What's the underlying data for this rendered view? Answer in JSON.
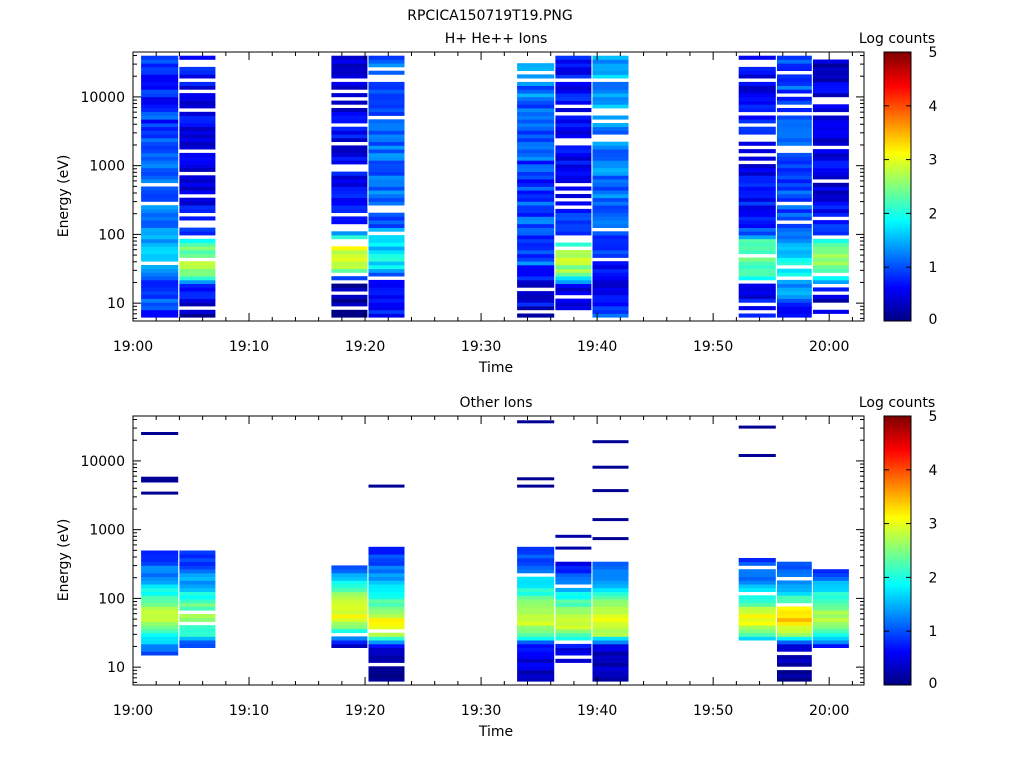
{
  "file_title": "RPCICA150719T19.PNG",
  "chart_data": [
    {
      "type": "heatmap",
      "title": "H+ He++ Ions",
      "xlabel": "Time",
      "ylabel": "Energy (eV)",
      "x_ticks": [
        "19:00",
        "19:10",
        "19:20",
        "19:30",
        "19:40",
        "19:50",
        "20:00"
      ],
      "x_range_minutes": [
        0,
        63
      ],
      "y_scale": "log",
      "y_range": [
        5.5,
        45000
      ],
      "y_tick_labels": [
        "10",
        "100",
        "1000",
        "10000"
      ],
      "colorbar": {
        "label": "Log counts",
        "range": [
          0,
          5
        ],
        "ticks": [
          "0",
          "1",
          "2",
          "3",
          "4",
          "5"
        ]
      },
      "scans": [
        {
          "start": "19:00.7",
          "end": "19:03.9",
          "emin": 6,
          "emax": 40000,
          "profile": [
            [
              6,
              0.8
            ],
            [
              15,
              1.0
            ],
            [
              30,
              1.2
            ],
            [
              60,
              1.5
            ],
            [
              120,
              1.3
            ],
            [
              400,
              1.0
            ],
            [
              3000,
              0.9
            ],
            [
              40000,
              0.8
            ]
          ],
          "noise": 0.7,
          "gap": 0.05,
          "seed": 11
        },
        {
          "start": "19:04.0",
          "end": "19:07.1",
          "emin": 6,
          "emax": 40000,
          "profile": [
            [
              6,
              0.2
            ],
            [
              18,
              0.7
            ],
            [
              25,
              2.3
            ],
            [
              45,
              2.8
            ],
            [
              70,
              2.2
            ],
            [
              100,
              1.0
            ],
            [
              400,
              0.5
            ],
            [
              40000,
              0.6
            ]
          ],
          "noise": 0.6,
          "gap": 0.2,
          "seed": 12
        },
        {
          "start": "19:17.1",
          "end": "19:20.2",
          "emin": 6,
          "emax": 40000,
          "profile": [
            [
              6,
              0.1
            ],
            [
              20,
              0.3
            ],
            [
              28,
              2.3
            ],
            [
              45,
              3.0
            ],
            [
              75,
              2.8
            ],
            [
              110,
              1.0
            ],
            [
              400,
              0.6
            ],
            [
              40000,
              0.5
            ]
          ],
          "noise": 0.6,
          "gap": 0.2,
          "seed": 13
        },
        {
          "start": "19:20.3",
          "end": "19:23.4",
          "emin": 6,
          "emax": 40000,
          "profile": [
            [
              6,
              0.8
            ],
            [
              20,
              0.5
            ],
            [
              30,
              1.6
            ],
            [
              50,
              1.9
            ],
            [
              80,
              1.5
            ],
            [
              150,
              1.1
            ],
            [
              1000,
              1.1
            ],
            [
              40000,
              1.1
            ]
          ],
          "noise": 0.6,
          "gap": 0.1,
          "seed": 14
        },
        {
          "start": "19:33.1",
          "end": "19:36.3",
          "emin": 6,
          "emax": 40000,
          "profile": [
            [
              6,
              0.5
            ],
            [
              20,
              0.6
            ],
            [
              40,
              1.1
            ],
            [
              100,
              1.0
            ],
            [
              400,
              0.9
            ],
            [
              5000,
              1.1
            ],
            [
              40000,
              1.3
            ]
          ],
          "noise": 0.7,
          "gap": 0.08,
          "seed": 15
        },
        {
          "start": "19:36.4",
          "end": "19:39.5",
          "emin": 6,
          "emax": 40000,
          "profile": [
            [
              6,
              0.2
            ],
            [
              18,
              0.6
            ],
            [
              25,
              2.4
            ],
            [
              45,
              2.9
            ],
            [
              70,
              2.3
            ],
            [
              100,
              1.0
            ],
            [
              400,
              0.6
            ],
            [
              40000,
              0.7
            ]
          ],
          "noise": 0.6,
          "gap": 0.22,
          "seed": 16
        },
        {
          "start": "19:39.6",
          "end": "19:42.7",
          "emin": 6,
          "emax": 40000,
          "profile": [
            [
              6,
              1.0
            ],
            [
              20,
              0.6
            ],
            [
              50,
              0.8
            ],
            [
              200,
              1.1
            ],
            [
              2000,
              1.3
            ],
            [
              40000,
              1.5
            ]
          ],
          "noise": 0.6,
          "gap": 0.1,
          "seed": 17
        },
        {
          "start": "19:52.2",
          "end": "19:55.4",
          "emin": 6,
          "emax": 40000,
          "profile": [
            [
              6,
              0.6
            ],
            [
              18,
              0.5
            ],
            [
              25,
              2.1
            ],
            [
              45,
              2.6
            ],
            [
              80,
              2.1
            ],
            [
              110,
              0.9
            ],
            [
              400,
              0.6
            ],
            [
              40000,
              0.6
            ]
          ],
          "noise": 0.6,
          "gap": 0.22,
          "seed": 18
        },
        {
          "start": "19:55.5",
          "end": "19:58.5",
          "emin": 6,
          "emax": 40000,
          "profile": [
            [
              6,
              0.4
            ],
            [
              20,
              1.6
            ],
            [
              35,
              1.9
            ],
            [
              60,
              1.6
            ],
            [
              120,
              1.0
            ],
            [
              1000,
              1.0
            ],
            [
              40000,
              1.0
            ]
          ],
          "noise": 0.6,
          "gap": 0.12,
          "seed": 19
        },
        {
          "start": "19:58.6",
          "end": "20:01.7",
          "emin": 6,
          "emax": 40000,
          "profile": [
            [
              6,
              0.2
            ],
            [
              18,
              0.6
            ],
            [
              25,
              2.3
            ],
            [
              45,
              2.8
            ],
            [
              70,
              2.2
            ],
            [
              100,
              1.0
            ],
            [
              400,
              0.5
            ],
            [
              40000,
              0.4
            ]
          ],
          "noise": 0.6,
          "gap": 0.2,
          "seed": 20
        }
      ]
    },
    {
      "type": "heatmap",
      "title": "Other Ions",
      "xlabel": "Time",
      "ylabel": "Energy (eV)",
      "x_ticks": [
        "19:00",
        "19:10",
        "19:20",
        "19:30",
        "19:40",
        "19:50",
        "20:00"
      ],
      "x_range_minutes": [
        0,
        63
      ],
      "y_scale": "log",
      "y_range": [
        5.5,
        45000
      ],
      "y_tick_labels": [
        "10",
        "100",
        "1000",
        "10000"
      ],
      "colorbar": {
        "label": "Log counts",
        "range": [
          0,
          5
        ],
        "ticks": [
          "0",
          "1",
          "2",
          "3",
          "4",
          "5"
        ]
      },
      "scans": [
        {
          "start": "19:00.7",
          "end": "19:03.9",
          "emin": 15,
          "emax": 500,
          "profile": [
            [
              15,
              0.6
            ],
            [
              25,
              1.8
            ],
            [
              40,
              2.6
            ],
            [
              60,
              2.8
            ],
            [
              100,
              2.2
            ],
            [
              200,
              1.4
            ],
            [
              500,
              0.8
            ]
          ],
          "noise": 0.4,
          "gap": 0.02,
          "seed": 21
        },
        {
          "start": "19:04.0",
          "end": "19:07.1",
          "emin": 20,
          "emax": 600,
          "profile": [
            [
              20,
              0.8
            ],
            [
              30,
              2.0
            ],
            [
              50,
              2.7
            ],
            [
              80,
              2.3
            ],
            [
              150,
              1.6
            ],
            [
              300,
              1.0
            ],
            [
              600,
              0.6
            ]
          ],
          "noise": 0.4,
          "gap": 0.12,
          "seed": 22
        },
        {
          "start": "19:17.1",
          "end": "19:20.2",
          "emin": 20,
          "emax": 300,
          "profile": [
            [
              20,
              0.3
            ],
            [
              28,
              1.5
            ],
            [
              45,
              2.9
            ],
            [
              70,
              3.1
            ],
            [
              120,
              2.5
            ],
            [
              200,
              1.5
            ],
            [
              300,
              0.9
            ]
          ],
          "noise": 0.4,
          "gap": 0.05,
          "seed": 23
        },
        {
          "start": "19:20.3",
          "end": "19:23.4",
          "emin": 6,
          "emax": 550,
          "profile": [
            [
              6,
              0.1
            ],
            [
              20,
              0.4
            ],
            [
              30,
              2.8
            ],
            [
              45,
              3.2
            ],
            [
              70,
              2.6
            ],
            [
              150,
              1.6
            ],
            [
              300,
              1.1
            ],
            [
              550,
              0.8
            ]
          ],
          "noise": 0.4,
          "gap": 0.06,
          "seed": 24
        },
        {
          "start": "19:33.1",
          "end": "19:36.3",
          "emin": 6,
          "emax": 550,
          "profile": [
            [
              6,
              0.3
            ],
            [
              20,
              0.6
            ],
            [
              30,
              2.4
            ],
            [
              50,
              3.0
            ],
            [
              80,
              2.6
            ],
            [
              150,
              1.8
            ],
            [
              300,
              1.2
            ],
            [
              550,
              0.7
            ]
          ],
          "noise": 0.4,
          "gap": 0.05,
          "seed": 25
        },
        {
          "start": "19:36.4",
          "end": "19:39.5",
          "emin": 10,
          "emax": 350,
          "profile": [
            [
              10,
              0.2
            ],
            [
              20,
              0.5
            ],
            [
              30,
              2.4
            ],
            [
              45,
              3.0
            ],
            [
              70,
              2.6
            ],
            [
              150,
              1.4
            ],
            [
              350,
              0.6
            ]
          ],
          "noise": 0.4,
          "gap": 0.15,
          "seed": 26
        },
        {
          "start": "19:39.6",
          "end": "19:42.7",
          "emin": 6,
          "emax": 350,
          "profile": [
            [
              6,
              0.2
            ],
            [
              20,
              0.4
            ],
            [
              30,
              2.6
            ],
            [
              50,
              3.0
            ],
            [
              80,
              2.6
            ],
            [
              150,
              1.6
            ],
            [
              350,
              0.8
            ]
          ],
          "noise": 0.4,
          "gap": 0.05,
          "seed": 27
        },
        {
          "start": "19:52.2",
          "end": "19:55.4",
          "emin": 25,
          "emax": 380,
          "profile": [
            [
              25,
              1.6
            ],
            [
              35,
              2.6
            ],
            [
              50,
              3.2
            ],
            [
              80,
              2.5
            ],
            [
              150,
              1.5
            ],
            [
              380,
              0.8
            ]
          ],
          "noise": 0.4,
          "gap": 0.08,
          "seed": 28
        },
        {
          "start": "19:55.5",
          "end": "19:58.5",
          "emin": 6,
          "emax": 350,
          "profile": [
            [
              6,
              0.1
            ],
            [
              20,
              0.3
            ],
            [
              30,
              2.6
            ],
            [
              50,
              3.6
            ],
            [
              70,
              3.0
            ],
            [
              120,
              1.8
            ],
            [
              350,
              0.8
            ]
          ],
          "noise": 0.4,
          "gap": 0.05,
          "seed": 29
        },
        {
          "start": "19:58.6",
          "end": "20:01.7",
          "emin": 20,
          "emax": 250,
          "profile": [
            [
              20,
              0.8
            ],
            [
              30,
              2.0
            ],
            [
              50,
              2.8
            ],
            [
              80,
              2.5
            ],
            [
              150,
              1.6
            ],
            [
              250,
              0.8
            ]
          ],
          "noise": 0.4,
          "gap": 0.05,
          "seed": 30
        }
      ],
      "isolated_lines": [
        {
          "start": "19:00.7",
          "end": "19:03.9",
          "energies": [
            25000,
            5600,
            5100,
            3400
          ],
          "level": 0.1
        },
        {
          "start": "19:20.3",
          "end": "19:23.4",
          "energies": [
            4300
          ],
          "level": 0.1
        },
        {
          "start": "19:33.1",
          "end": "19:36.3",
          "energies": [
            37000,
            5500,
            4300
          ],
          "level": 0.1
        },
        {
          "start": "19:36.4",
          "end": "19:39.5",
          "energies": [
            800,
            540
          ],
          "level": 0.2
        },
        {
          "start": "19:39.6",
          "end": "19:42.7",
          "energies": [
            19000,
            8100,
            3700,
            1400,
            740
          ],
          "level": 0.1
        },
        {
          "start": "19:52.2",
          "end": "19:55.4",
          "energies": [
            31000,
            12000
          ],
          "level": 0.1
        }
      ]
    }
  ]
}
